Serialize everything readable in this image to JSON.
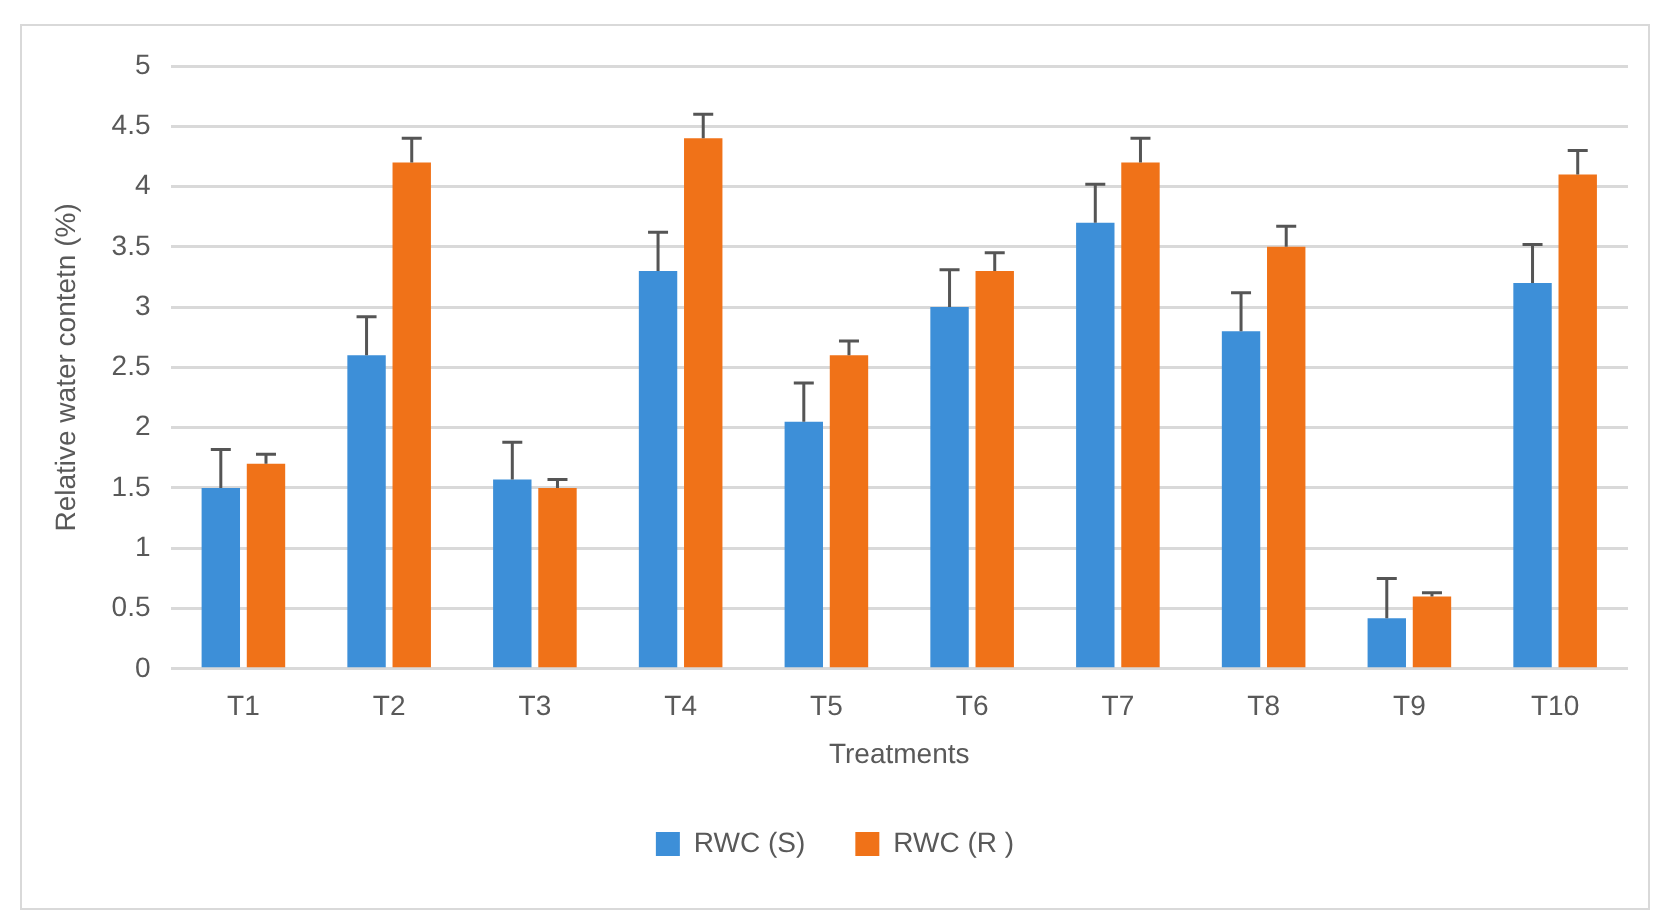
{
  "chart_data": {
    "type": "bar",
    "xlabel": "Treatments",
    "ylabel": "Relative water contetn (%)",
    "categories": [
      "T1",
      "T2",
      "T3",
      "T4",
      "T5",
      "T6",
      "T7",
      "T8",
      "T9",
      "T10"
    ],
    "series": [
      {
        "name": "RWC (S)",
        "color": "#3d8fd8",
        "values": [
          1.5,
          2.6,
          1.57,
          3.3,
          2.05,
          3.0,
          3.7,
          2.8,
          0.42,
          3.2
        ],
        "errors": [
          [
            1.5,
            1.82
          ],
          [
            2.6,
            2.92
          ],
          [
            1.57,
            1.88
          ],
          [
            3.3,
            3.62
          ],
          [
            2.05,
            2.37
          ],
          [
            3.0,
            3.31
          ],
          [
            3.7,
            4.02
          ],
          [
            2.8,
            3.12
          ],
          [
            0.42,
            0.75
          ],
          [
            3.2,
            3.52
          ]
        ]
      },
      {
        "name": "RWC (R )",
        "color": "#f07218",
        "values": [
          1.7,
          4.2,
          1.5,
          4.4,
          2.6,
          3.3,
          4.2,
          3.5,
          0.6,
          4.1
        ],
        "errors": [
          [
            1.7,
            1.78
          ],
          [
            4.2,
            4.4
          ],
          [
            1.5,
            1.57
          ],
          [
            4.4,
            4.6
          ],
          [
            2.6,
            2.72
          ],
          [
            3.3,
            3.45
          ],
          [
            4.2,
            4.4
          ],
          [
            3.5,
            3.67
          ],
          [
            0.6,
            0.63
          ],
          [
            4.1,
            4.3
          ]
        ]
      }
    ],
    "ylim": [
      0,
      5
    ],
    "yticks": [
      0,
      0.5,
      1,
      1.5,
      2,
      2.5,
      3,
      3.5,
      4,
      4.5,
      5
    ],
    "grid": "y",
    "legend": "bottom"
  }
}
